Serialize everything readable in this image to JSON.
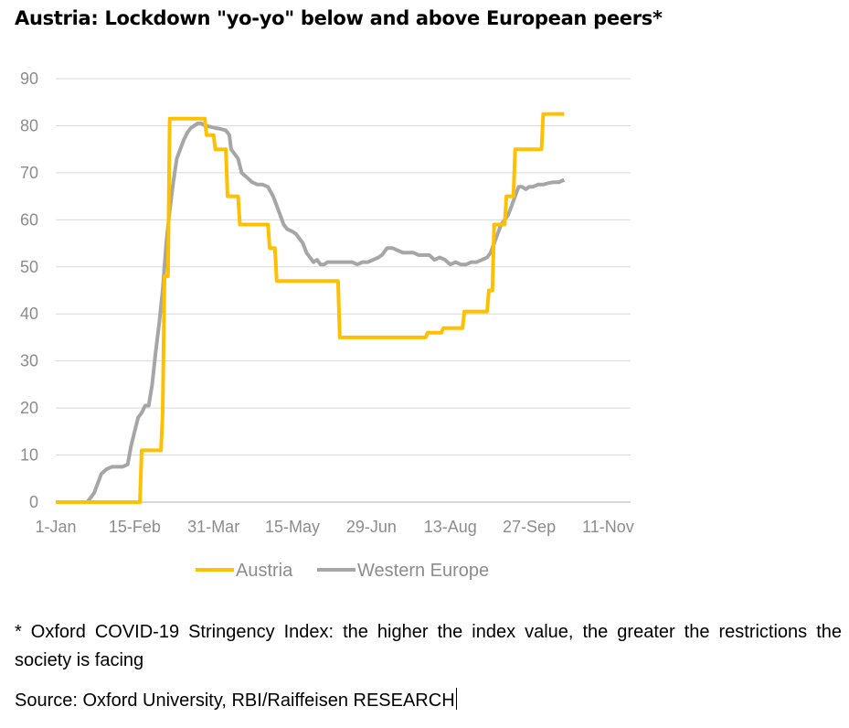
{
  "chart_data": {
    "type": "line",
    "title": "Austria: Lockdown \"yo-yo\" below and above European peers*",
    "x_tick_labels": [
      "1-Jan",
      "15-Feb",
      "31-Mar",
      "15-May",
      "29-Jun",
      "13-Aug",
      "27-Sep",
      "11-Nov"
    ],
    "x_tick_days": [
      0,
      45,
      90,
      135,
      180,
      225,
      270,
      315
    ],
    "ylim": [
      0,
      90
    ],
    "y_ticks": [
      0,
      10,
      20,
      30,
      40,
      50,
      60,
      70,
      80,
      90
    ],
    "grid": "horizontal",
    "legend_position": "bottom",
    "series": [
      {
        "name": "Austria",
        "color": "#FFC000",
        "points": [
          [
            0,
            0
          ],
          [
            48,
            0
          ],
          [
            49,
            11
          ],
          [
            60,
            11
          ],
          [
            61,
            19
          ],
          [
            62,
            48
          ],
          [
            63,
            48
          ],
          [
            64,
            48
          ],
          [
            65,
            81.5
          ],
          [
            85,
            81.5
          ],
          [
            86,
            78
          ],
          [
            90,
            78
          ],
          [
            91,
            75
          ],
          [
            97,
            75
          ],
          [
            98,
            65
          ],
          [
            104,
            65
          ],
          [
            105,
            59
          ],
          [
            121,
            59
          ],
          [
            122,
            54
          ],
          [
            125,
            54
          ],
          [
            126,
            47
          ],
          [
            161,
            47
          ],
          [
            162,
            35
          ],
          [
            211,
            35
          ],
          [
            212,
            36
          ],
          [
            220,
            36
          ],
          [
            221,
            37
          ],
          [
            232,
            37
          ],
          [
            233,
            40.5
          ],
          [
            246,
            40.5
          ],
          [
            247,
            45
          ],
          [
            249,
            45
          ],
          [
            250,
            59
          ],
          [
            256,
            59
          ],
          [
            257,
            65
          ],
          [
            261,
            65
          ],
          [
            262,
            75
          ],
          [
            277,
            75
          ],
          [
            278,
            82.5
          ],
          [
            290,
            82.5
          ]
        ]
      },
      {
        "name": "Western Europe",
        "color": "#A6A6A6",
        "points": [
          [
            0,
            0
          ],
          [
            18,
            0
          ],
          [
            20,
            1
          ],
          [
            22,
            2
          ],
          [
            24,
            4
          ],
          [
            26,
            6
          ],
          [
            29,
            7
          ],
          [
            32,
            7.5
          ],
          [
            35,
            7.5
          ],
          [
            38,
            7.5
          ],
          [
            41,
            8
          ],
          [
            43,
            12
          ],
          [
            45,
            15
          ],
          [
            47,
            18
          ],
          [
            49,
            19
          ],
          [
            51,
            20.5
          ],
          [
            53,
            20.5
          ],
          [
            55,
            25
          ],
          [
            57,
            32
          ],
          [
            59,
            38
          ],
          [
            61,
            45
          ],
          [
            63,
            55
          ],
          [
            65,
            62
          ],
          [
            67,
            68
          ],
          [
            69,
            73
          ],
          [
            71,
            75
          ],
          [
            73,
            77
          ],
          [
            75,
            78.5
          ],
          [
            77,
            79.5
          ],
          [
            79,
            80
          ],
          [
            81,
            80.5
          ],
          [
            83,
            80.5
          ],
          [
            85,
            80
          ],
          [
            88,
            79.8
          ],
          [
            91,
            79.5
          ],
          [
            94,
            79.3
          ],
          [
            97,
            79
          ],
          [
            99,
            78
          ],
          [
            100,
            75
          ],
          [
            102,
            74
          ],
          [
            104,
            73
          ],
          [
            106,
            70
          ],
          [
            109,
            69
          ],
          [
            112,
            68
          ],
          [
            115,
            67.5
          ],
          [
            118,
            67.5
          ],
          [
            121,
            67
          ],
          [
            124,
            65
          ],
          [
            126,
            63
          ],
          [
            128,
            61
          ],
          [
            130,
            59
          ],
          [
            132,
            58
          ],
          [
            135,
            57.5
          ],
          [
            137,
            57
          ],
          [
            139,
            56
          ],
          [
            141,
            55
          ],
          [
            143,
            53
          ],
          [
            145,
            52
          ],
          [
            147,
            51
          ],
          [
            149,
            51.5
          ],
          [
            151,
            50.5
          ],
          [
            153,
            50.5
          ],
          [
            155,
            51
          ],
          [
            157,
            51
          ],
          [
            160,
            51
          ],
          [
            163,
            51
          ],
          [
            166,
            51
          ],
          [
            169,
            51
          ],
          [
            172,
            50.5
          ],
          [
            175,
            51
          ],
          [
            178,
            51
          ],
          [
            181,
            51.5
          ],
          [
            184,
            52
          ],
          [
            186,
            52.5
          ],
          [
            189,
            54
          ],
          [
            192,
            54
          ],
          [
            195,
            53.5
          ],
          [
            198,
            53
          ],
          [
            201,
            53
          ],
          [
            204,
            53
          ],
          [
            207,
            52.5
          ],
          [
            210,
            52.5
          ],
          [
            213,
            52.5
          ],
          [
            216,
            51.5
          ],
          [
            219,
            52
          ],
          [
            222,
            51.5
          ],
          [
            225,
            50.5
          ],
          [
            228,
            51
          ],
          [
            231,
            50.5
          ],
          [
            234,
            50.5
          ],
          [
            237,
            51
          ],
          [
            240,
            51
          ],
          [
            243,
            51.5
          ],
          [
            246,
            52
          ],
          [
            248,
            53
          ],
          [
            250,
            55
          ],
          [
            252,
            57
          ],
          [
            254,
            59
          ],
          [
            256,
            60
          ],
          [
            258,
            61
          ],
          [
            260,
            63
          ],
          [
            262,
            65
          ],
          [
            264,
            67
          ],
          [
            266,
            67
          ],
          [
            268,
            66.5
          ],
          [
            270,
            67
          ],
          [
            272,
            67
          ],
          [
            275,
            67.5
          ],
          [
            278,
            67.5
          ],
          [
            281,
            67.8
          ],
          [
            284,
            68
          ],
          [
            287,
            68
          ],
          [
            290,
            68.5
          ]
        ]
      }
    ]
  },
  "footnote": "* Oxford COVID-19 Stringency Index: the higher the index value, the greater the restrictions the society is facing",
  "source": "Source: Oxford University, RBI/Raiffeisen RESEARCH"
}
